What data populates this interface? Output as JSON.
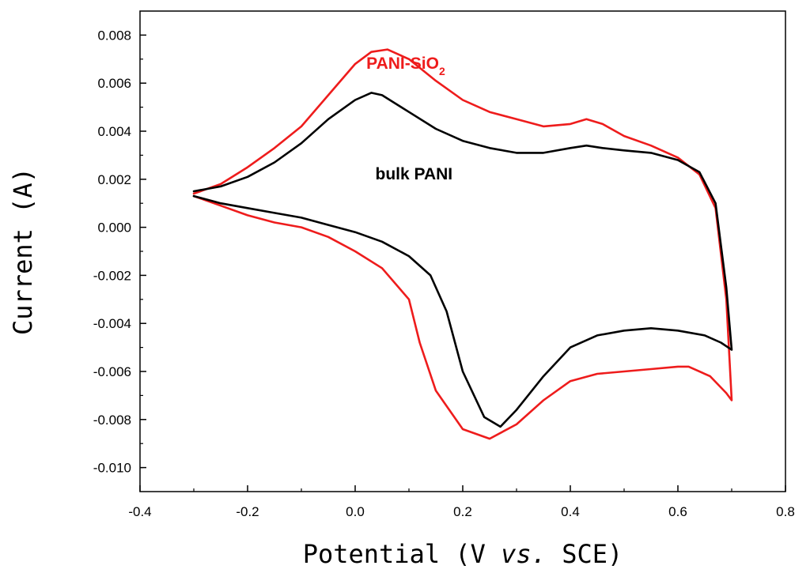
{
  "chart_data": {
    "type": "line",
    "xlabel": "Potential (V vs. SCE)",
    "xlabel_parts": {
      "prefix": "Potential (V ",
      "italic": "vs.",
      "suffix": " SCE)"
    },
    "ylabel": "Current (A)",
    "xlim": [
      -0.4,
      0.8
    ],
    "ylim": [
      -0.011,
      0.009
    ],
    "x_ticks": [
      -0.4,
      -0.2,
      0.0,
      0.2,
      0.4,
      0.6,
      0.8
    ],
    "x_tick_labels": [
      "-0.4",
      "-0.2",
      "0.0",
      "0.2",
      "0.4",
      "0.6",
      "0.8"
    ],
    "y_ticks": [
      -0.01,
      -0.008,
      -0.006,
      -0.004,
      -0.002,
      0.0,
      0.002,
      0.004,
      0.006,
      0.008
    ],
    "y_tick_labels": [
      "-0.010",
      "-0.008",
      "-0.006",
      "-0.004",
      "-0.002",
      "0.000",
      "0.002",
      "0.004",
      "0.006",
      "0.008"
    ],
    "grid": false,
    "legend": "inline annotations",
    "series": [
      {
        "name": "PANI-SiO2",
        "label_main": "PANI-SiO",
        "label_sub": "2",
        "color": "#ee1c1c",
        "points": [
          [
            -0.3,
            0.0014
          ],
          [
            -0.25,
            0.0018
          ],
          [
            -0.2,
            0.0025
          ],
          [
            -0.15,
            0.0033
          ],
          [
            -0.1,
            0.0042
          ],
          [
            -0.05,
            0.0055
          ],
          [
            0.0,
            0.0068
          ],
          [
            0.03,
            0.0073
          ],
          [
            0.06,
            0.0074
          ],
          [
            0.1,
            0.007
          ],
          [
            0.15,
            0.0061
          ],
          [
            0.2,
            0.0053
          ],
          [
            0.25,
            0.0048
          ],
          [
            0.3,
            0.0045
          ],
          [
            0.35,
            0.0042
          ],
          [
            0.4,
            0.0043
          ],
          [
            0.43,
            0.0045
          ],
          [
            0.46,
            0.0043
          ],
          [
            0.5,
            0.0038
          ],
          [
            0.55,
            0.0034
          ],
          [
            0.6,
            0.0029
          ],
          [
            0.64,
            0.0022
          ],
          [
            0.67,
            0.0008
          ],
          [
            0.69,
            -0.003
          ],
          [
            0.7,
            -0.0072
          ],
          [
            0.69,
            -0.0069
          ],
          [
            0.66,
            -0.0062
          ],
          [
            0.62,
            -0.0058
          ],
          [
            0.6,
            -0.0058
          ],
          [
            0.55,
            -0.0059
          ],
          [
            0.5,
            -0.006
          ],
          [
            0.45,
            -0.0061
          ],
          [
            0.4,
            -0.0064
          ],
          [
            0.35,
            -0.0072
          ],
          [
            0.3,
            -0.0082
          ],
          [
            0.25,
            -0.0088
          ],
          [
            0.2,
            -0.0084
          ],
          [
            0.15,
            -0.0068
          ],
          [
            0.12,
            -0.0048
          ],
          [
            0.1,
            -0.003
          ],
          [
            0.05,
            -0.0017
          ],
          [
            0.0,
            -0.001
          ],
          [
            -0.05,
            -0.0004
          ],
          [
            -0.1,
            0.0
          ],
          [
            -0.15,
            0.0002
          ],
          [
            -0.2,
            0.0005
          ],
          [
            -0.25,
            0.0009
          ],
          [
            -0.3,
            0.0013
          ]
        ]
      },
      {
        "name": "bulk PANI",
        "label_main": "bulk PANI",
        "label_sub": "",
        "color": "#000000",
        "points": [
          [
            -0.3,
            0.0015
          ],
          [
            -0.25,
            0.0017
          ],
          [
            -0.2,
            0.0021
          ],
          [
            -0.15,
            0.0027
          ],
          [
            -0.1,
            0.0035
          ],
          [
            -0.05,
            0.0045
          ],
          [
            0.0,
            0.0053
          ],
          [
            0.03,
            0.0056
          ],
          [
            0.05,
            0.0055
          ],
          [
            0.1,
            0.0048
          ],
          [
            0.15,
            0.0041
          ],
          [
            0.2,
            0.0036
          ],
          [
            0.25,
            0.0033
          ],
          [
            0.3,
            0.0031
          ],
          [
            0.35,
            0.0031
          ],
          [
            0.4,
            0.0033
          ],
          [
            0.43,
            0.0034
          ],
          [
            0.46,
            0.0033
          ],
          [
            0.5,
            0.0032
          ],
          [
            0.55,
            0.0031
          ],
          [
            0.6,
            0.0028
          ],
          [
            0.64,
            0.0023
          ],
          [
            0.67,
            0.001
          ],
          [
            0.69,
            -0.0025
          ],
          [
            0.7,
            -0.0051
          ],
          [
            0.68,
            -0.0048
          ],
          [
            0.65,
            -0.0045
          ],
          [
            0.6,
            -0.0043
          ],
          [
            0.55,
            -0.0042
          ],
          [
            0.5,
            -0.0043
          ],
          [
            0.45,
            -0.0045
          ],
          [
            0.4,
            -0.005
          ],
          [
            0.35,
            -0.0062
          ],
          [
            0.3,
            -0.0076
          ],
          [
            0.27,
            -0.0083
          ],
          [
            0.24,
            -0.0079
          ],
          [
            0.2,
            -0.006
          ],
          [
            0.17,
            -0.0035
          ],
          [
            0.14,
            -0.002
          ],
          [
            0.1,
            -0.0012
          ],
          [
            0.05,
            -0.0006
          ],
          [
            0.0,
            -0.0002
          ],
          [
            -0.05,
            0.0001
          ],
          [
            -0.1,
            0.0004
          ],
          [
            -0.15,
            0.0006
          ],
          [
            -0.2,
            0.0008
          ],
          [
            -0.25,
            0.001
          ],
          [
            -0.3,
            0.0013
          ]
        ]
      }
    ],
    "annotations": [
      {
        "series": 0,
        "x": 0.0208,
        "y": 0.0066
      },
      {
        "series": 1,
        "x": 0.0375,
        "y": 0.002
      }
    ]
  }
}
